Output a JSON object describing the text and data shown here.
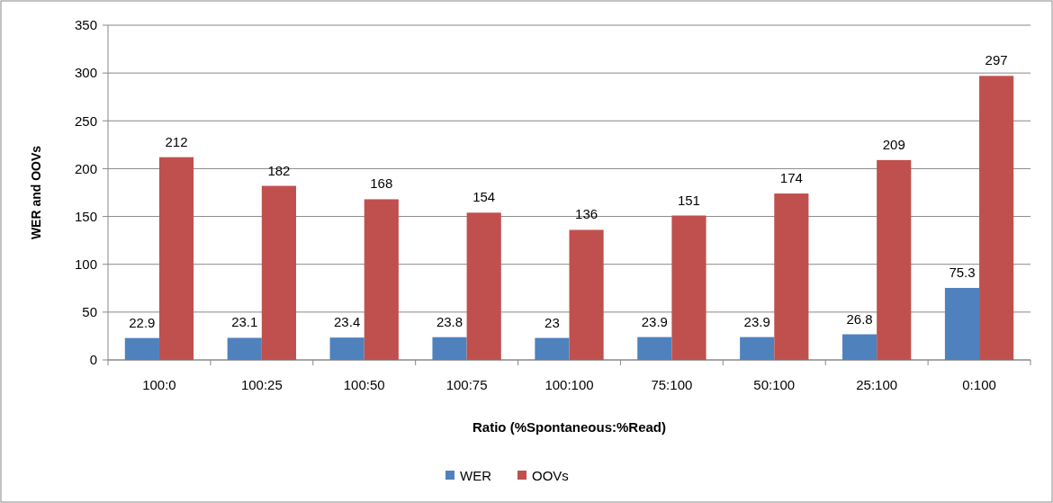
{
  "chart_data": {
    "type": "bar",
    "xlabel": "Ratio (%Spontaneous:%Read)",
    "ylabel": "WER and OOVs",
    "categories": [
      "100:0",
      "100:25",
      "100:50",
      "100:75",
      "100:100",
      "75:100",
      "50:100",
      "25:100",
      "0:100"
    ],
    "series": [
      {
        "name": "WER",
        "color": "#4f81bd",
        "values": [
          22.9,
          23.1,
          23.4,
          23.8,
          23,
          23.9,
          23.9,
          26.8,
          75.3
        ]
      },
      {
        "name": "OOVs",
        "color": "#c0504d",
        "values": [
          212,
          182,
          168,
          154,
          136,
          151,
          174,
          209,
          297
        ]
      }
    ],
    "ylim": [
      0,
      350
    ],
    "yticks": [
      0,
      50,
      100,
      150,
      200,
      250,
      300,
      350
    ],
    "grid": "y",
    "legend": "bottom",
    "data_labels": true
  }
}
